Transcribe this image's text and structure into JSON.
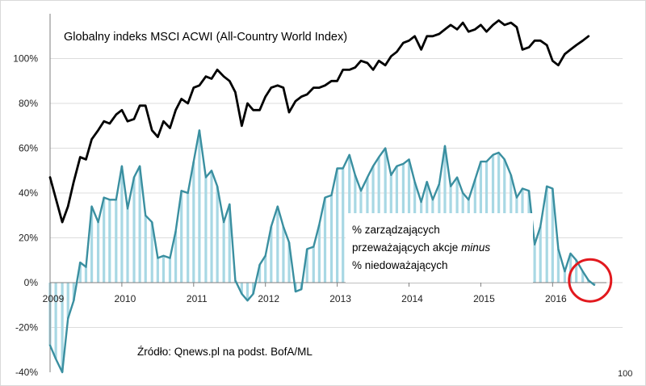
{
  "chart_data": {
    "type": "line",
    "title": "Globalny indeks MSCI ACWI (All-Country World Index)",
    "yaxis": {
      "min": -40,
      "max": 120,
      "ticks": [
        -40,
        -20,
        0,
        20,
        40,
        60,
        80,
        100
      ],
      "tick_labels": [
        "-40%",
        "-20%",
        "0%",
        "20%",
        "40%",
        "60%",
        "80%",
        "100%"
      ]
    },
    "xaxis": {
      "start": 2009.0,
      "end": 2016.75,
      "tick_labels": [
        "2009",
        "2010",
        "2011",
        "2012",
        "2013",
        "2014",
        "2015",
        "2016"
      ]
    },
    "series": [
      {
        "name": "Globalny indeks MSCI ACWI",
        "color": "#000000",
        "style": "line",
        "points": [
          [
            2009.0,
            47
          ],
          [
            2009.17,
            27
          ],
          [
            2009.25,
            34
          ],
          [
            2009.33,
            45
          ],
          [
            2009.42,
            56
          ],
          [
            2009.5,
            55
          ],
          [
            2009.58,
            64
          ],
          [
            2009.67,
            68
          ],
          [
            2009.75,
            72
          ],
          [
            2009.83,
            71
          ],
          [
            2009.92,
            75
          ],
          [
            2010.0,
            77
          ],
          [
            2010.08,
            72
          ],
          [
            2010.17,
            73
          ],
          [
            2010.25,
            79
          ],
          [
            2010.33,
            79
          ],
          [
            2010.42,
            68
          ],
          [
            2010.5,
            65
          ],
          [
            2010.58,
            72
          ],
          [
            2010.67,
            69
          ],
          [
            2010.75,
            77
          ],
          [
            2010.83,
            82
          ],
          [
            2010.92,
            80
          ],
          [
            2011.0,
            87
          ],
          [
            2011.08,
            88
          ],
          [
            2011.17,
            92
          ],
          [
            2011.25,
            91
          ],
          [
            2011.33,
            95
          ],
          [
            2011.42,
            92
          ],
          [
            2011.5,
            90
          ],
          [
            2011.58,
            85
          ],
          [
            2011.67,
            70
          ],
          [
            2011.75,
            80
          ],
          [
            2011.83,
            77
          ],
          [
            2011.92,
            77
          ],
          [
            2012.0,
            83
          ],
          [
            2012.08,
            87
          ],
          [
            2012.17,
            88
          ],
          [
            2012.25,
            87
          ],
          [
            2012.33,
            76
          ],
          [
            2012.42,
            81
          ],
          [
            2012.5,
            83
          ],
          [
            2012.58,
            84
          ],
          [
            2012.67,
            87
          ],
          [
            2012.75,
            87
          ],
          [
            2012.83,
            88
          ],
          [
            2012.92,
            90
          ],
          [
            2013.0,
            90
          ],
          [
            2013.08,
            95
          ],
          [
            2013.17,
            95
          ],
          [
            2013.25,
            96
          ],
          [
            2013.33,
            99
          ],
          [
            2013.42,
            98
          ],
          [
            2013.5,
            95
          ],
          [
            2013.58,
            99
          ],
          [
            2013.67,
            97
          ],
          [
            2013.75,
            101
          ],
          [
            2013.83,
            103
          ],
          [
            2013.92,
            107
          ],
          [
            2014.0,
            108
          ],
          [
            2014.08,
            110
          ],
          [
            2014.17,
            104
          ],
          [
            2014.25,
            110
          ],
          [
            2014.33,
            110
          ],
          [
            2014.42,
            111
          ],
          [
            2014.5,
            113
          ],
          [
            2014.58,
            115
          ],
          [
            2014.67,
            113
          ],
          [
            2014.75,
            116
          ],
          [
            2014.83,
            112
          ],
          [
            2014.92,
            113
          ],
          [
            2015.0,
            115
          ],
          [
            2015.08,
            112
          ],
          [
            2015.17,
            115
          ],
          [
            2015.25,
            117
          ],
          [
            2015.33,
            115
          ],
          [
            2015.42,
            116
          ],
          [
            2015.5,
            114
          ],
          [
            2015.58,
            104
          ],
          [
            2015.67,
            105
          ],
          [
            2015.75,
            108
          ],
          [
            2015.83,
            108
          ],
          [
            2015.92,
            106
          ],
          [
            2016.0,
            99
          ],
          [
            2016.08,
            97
          ],
          [
            2016.17,
            102
          ],
          [
            2016.25,
            104
          ],
          [
            2016.33,
            106
          ],
          [
            2016.42,
            108
          ],
          [
            2016.5,
            110
          ]
        ]
      },
      {
        "name": "% zarządzających przeważających akcje minus % niedoważających",
        "color": "#3a8fa0",
        "fill_color": "#a8d8e4",
        "style": "line+bars",
        "points": [
          [
            2009.0,
            -28
          ],
          [
            2009.08,
            -34
          ],
          [
            2009.17,
            -40
          ],
          [
            2009.25,
            -16
          ],
          [
            2009.33,
            -8
          ],
          [
            2009.42,
            9
          ],
          [
            2009.5,
            7
          ],
          [
            2009.58,
            34
          ],
          [
            2009.67,
            27
          ],
          [
            2009.75,
            38
          ],
          [
            2009.83,
            37
          ],
          [
            2009.92,
            37
          ],
          [
            2010.0,
            52
          ],
          [
            2010.08,
            33
          ],
          [
            2010.17,
            47
          ],
          [
            2010.25,
            52
          ],
          [
            2010.33,
            30
          ],
          [
            2010.42,
            27
          ],
          [
            2010.5,
            11
          ],
          [
            2010.58,
            12
          ],
          [
            2010.67,
            11
          ],
          [
            2010.75,
            23
          ],
          [
            2010.83,
            41
          ],
          [
            2010.92,
            40
          ],
          [
            2011.0,
            54
          ],
          [
            2011.08,
            68
          ],
          [
            2011.17,
            47
          ],
          [
            2011.25,
            50
          ],
          [
            2011.33,
            43
          ],
          [
            2011.42,
            27
          ],
          [
            2011.5,
            35
          ],
          [
            2011.58,
            1
          ],
          [
            2011.67,
            -5
          ],
          [
            2011.75,
            -8
          ],
          [
            2011.83,
            -5
          ],
          [
            2011.92,
            8
          ],
          [
            2012.0,
            12
          ],
          [
            2012.08,
            25
          ],
          [
            2012.17,
            34
          ],
          [
            2012.25,
            25
          ],
          [
            2012.33,
            18
          ],
          [
            2012.42,
            -4
          ],
          [
            2012.5,
            -3
          ],
          [
            2012.58,
            15
          ],
          [
            2012.67,
            16
          ],
          [
            2012.75,
            26
          ],
          [
            2012.83,
            38
          ],
          [
            2012.92,
            39
          ],
          [
            2013.0,
            51
          ],
          [
            2013.08,
            51
          ],
          [
            2013.17,
            57
          ],
          [
            2013.25,
            48
          ],
          [
            2013.33,
            41
          ],
          [
            2013.42,
            47
          ],
          [
            2013.5,
            52
          ],
          [
            2013.58,
            56
          ],
          [
            2013.67,
            60
          ],
          [
            2013.75,
            48
          ],
          [
            2013.83,
            52
          ],
          [
            2013.92,
            53
          ],
          [
            2014.0,
            55
          ],
          [
            2014.08,
            45
          ],
          [
            2014.17,
            36
          ],
          [
            2014.25,
            45
          ],
          [
            2014.33,
            37
          ],
          [
            2014.42,
            44
          ],
          [
            2014.5,
            61
          ],
          [
            2014.58,
            43
          ],
          [
            2014.67,
            47
          ],
          [
            2014.75,
            40
          ],
          [
            2014.83,
            37
          ],
          [
            2014.92,
            46
          ],
          [
            2015.0,
            54
          ],
          [
            2015.08,
            54
          ],
          [
            2015.17,
            57
          ],
          [
            2015.25,
            58
          ],
          [
            2015.33,
            55
          ],
          [
            2015.42,
            48
          ],
          [
            2015.5,
            38
          ],
          [
            2015.58,
            42
          ],
          [
            2015.67,
            41
          ],
          [
            2015.75,
            17
          ],
          [
            2015.83,
            25
          ],
          [
            2015.92,
            43
          ],
          [
            2016.0,
            42
          ],
          [
            2016.08,
            15
          ],
          [
            2016.17,
            5
          ],
          [
            2016.25,
            13
          ],
          [
            2016.33,
            10
          ],
          [
            2016.42,
            5
          ],
          [
            2016.5,
            1
          ],
          [
            2016.58,
            -1
          ]
        ]
      }
    ],
    "annotations": {
      "series_label_line1": "% zarządzających",
      "series_label_line2_prefix": "przeważających akcje ",
      "series_label_line2_emph": "minus",
      "series_label_line3": "% niedoważających",
      "source": "Źródło: Qnews.pl na podst. BofA/ML",
      "corner_label": "100",
      "highlight_circle": {
        "x": 2016.5,
        "y": 1,
        "color": "#e2191e"
      }
    }
  }
}
